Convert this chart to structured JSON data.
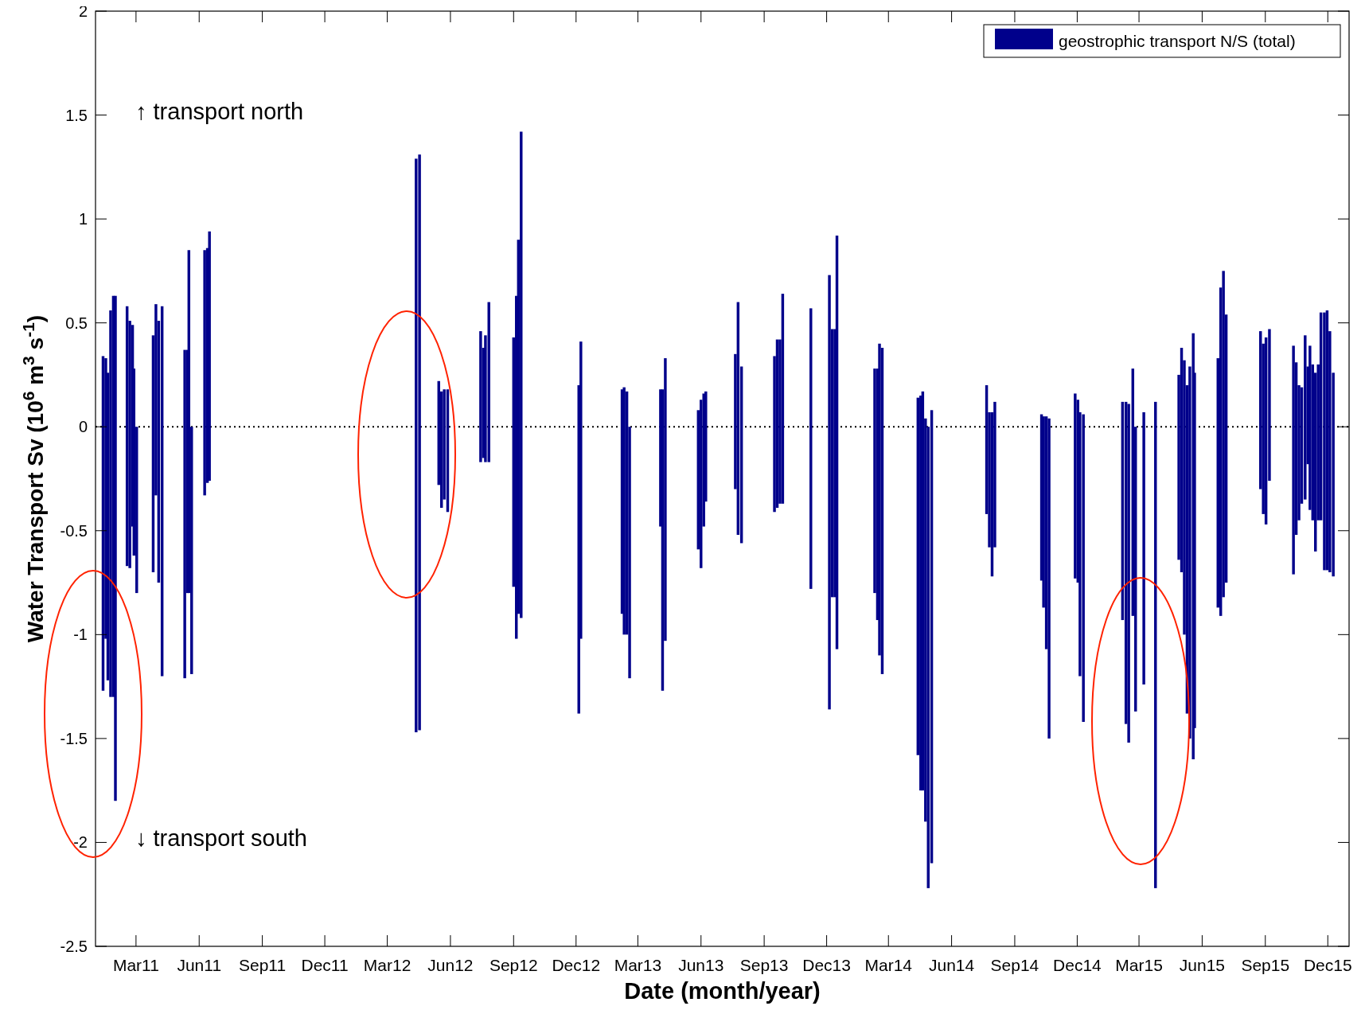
{
  "chart_data": {
    "type": "bar",
    "xlabel": "Date (month/year)",
    "ylabel": "Water Transport Sv (10$^{6}$ m$^{3}$ s$^{-1}$)",
    "annotations": [
      "↑ transport north",
      "↓ transport south"
    ],
    "legend": "top right",
    "grid": false,
    "ylim": [
      -2.5,
      2
    ],
    "yticks": [
      -2.5,
      -2,
      -1.5,
      -1,
      -0.5,
      0,
      0.5,
      1,
      1.5,
      2
    ],
    "xlim": [
      "2011-01-01",
      "2016-01-01"
    ],
    "xticks": [
      {
        "value": "2011-03-01",
        "label": "Mar11"
      },
      {
        "value": "2011-06-01",
        "label": "Jun11"
      },
      {
        "value": "2011-09-01",
        "label": "Sep11"
      },
      {
        "value": "2011-12-01",
        "label": "Dec11"
      },
      {
        "value": "2012-03-01",
        "label": "Mar12"
      },
      {
        "value": "2012-06-01",
        "label": "Jun12"
      },
      {
        "value": "2012-09-01",
        "label": "Sep12"
      },
      {
        "value": "2012-12-01",
        "label": "Dec12"
      },
      {
        "value": "2013-03-01",
        "label": "Mar13"
      },
      {
        "value": "2013-06-01",
        "label": "Jun13"
      },
      {
        "value": "2013-09-01",
        "label": "Sep13"
      },
      {
        "value": "2013-12-01",
        "label": "Dec13"
      },
      {
        "value": "2014-03-01",
        "label": "Mar14"
      },
      {
        "value": "2014-06-01",
        "label": "Jun14"
      },
      {
        "value": "2014-09-01",
        "label": "Sep14"
      },
      {
        "value": "2014-12-01",
        "label": "Dec14"
      },
      {
        "value": "2015-03-01",
        "label": "Mar15"
      },
      {
        "value": "2015-06-01",
        "label": "Jun15"
      },
      {
        "value": "2015-09-01",
        "label": "Sep15"
      },
      {
        "value": "2015-12-01",
        "label": "Dec15"
      }
    ],
    "ref_lines": [
      {
        "axis": "y",
        "value": 0,
        "line_style": "dotted",
        "color": "#000000"
      }
    ],
    "x": [
      "2011-01-12",
      "2011-01-16",
      "2011-01-19",
      "2011-01-23",
      "2011-01-27",
      "2011-01-30",
      "2011-02-16",
      "2011-02-20",
      "2011-02-24",
      "2011-02-26",
      "2011-03-02",
      "2011-03-26",
      "2011-03-30",
      "2011-04-03",
      "2011-04-08",
      "2011-05-11",
      "2011-05-15",
      "2011-05-17",
      "2011-05-21",
      "2011-06-09",
      "2011-06-13",
      "2011-06-16",
      "2012-04-12",
      "2012-04-17",
      "2012-05-15",
      "2012-05-19",
      "2012-05-23",
      "2012-05-28",
      "2012-07-15",
      "2012-07-19",
      "2012-07-22",
      "2012-07-27",
      "2012-09-01",
      "2012-09-05",
      "2012-09-08",
      "2012-09-12",
      "2012-12-05",
      "2012-12-08",
      "2013-02-06",
      "2013-02-09",
      "2013-02-13",
      "2013-02-17",
      "2013-04-03",
      "2013-04-06",
      "2013-04-10",
      "2013-05-28",
      "2013-06-01",
      "2013-06-05",
      "2013-06-08",
      "2013-07-21",
      "2013-07-25",
      "2013-07-30",
      "2013-09-16",
      "2013-09-20",
      "2013-09-24",
      "2013-09-28",
      "2013-11-08",
      "2013-12-05",
      "2013-12-09",
      "2013-12-13",
      "2013-12-16",
      "2014-02-09",
      "2014-02-13",
      "2014-02-16",
      "2014-02-20",
      "2014-04-13",
      "2014-04-17",
      "2014-04-20",
      "2014-04-24",
      "2014-04-28",
      "2014-05-03",
      "2014-07-22",
      "2014-07-26",
      "2014-07-30",
      "2014-08-03",
      "2014-10-10",
      "2014-10-13",
      "2014-10-17",
      "2014-10-21",
      "2014-11-28",
      "2014-12-02",
      "2014-12-05",
      "2014-12-10",
      "2015-02-05",
      "2015-02-10",
      "2015-02-14",
      "2015-02-20",
      "2015-02-24",
      "2015-03-08",
      "2015-03-25",
      "2015-04-28",
      "2015-05-02",
      "2015-05-06",
      "2015-05-10",
      "2015-05-14",
      "2015-05-19",
      "2015-05-21",
      "2015-06-24",
      "2015-06-28",
      "2015-07-02",
      "2015-07-06",
      "2015-08-25",
      "2015-08-29",
      "2015-09-02",
      "2015-09-07",
      "2015-10-12",
      "2015-10-16",
      "2015-10-20",
      "2015-10-24",
      "2015-10-29",
      "2015-11-02",
      "2015-11-05",
      "2015-11-09",
      "2015-11-13",
      "2015-11-17",
      "2015-11-21",
      "2015-11-26",
      "2015-11-30",
      "2015-12-04",
      "2015-12-09"
    ],
    "series": [
      {
        "name": "geostrophic transport N/S (total)",
        "color": "#00008b",
        "base": [
          -1.27,
          -1.02,
          -1.22,
          -1.3,
          -1.3,
          -1.8,
          -0.67,
          -0.68,
          -0.48,
          -0.62,
          -0.8,
          -0.7,
          -0.33,
          -0.75,
          -1.2,
          -1.21,
          -0.8,
          -0.8,
          -1.19,
          -0.33,
          -0.27,
          -0.26,
          -1.47,
          -1.46,
          -0.28,
          -0.39,
          -0.35,
          -0.41,
          -0.17,
          -0.15,
          -0.17,
          -0.17,
          -0.77,
          -1.02,
          -0.9,
          -0.92,
          -1.38,
          -1.02,
          -0.9,
          -1.0,
          -1.0,
          -1.21,
          -0.48,
          -1.27,
          -1.03,
          -0.59,
          -0.68,
          -0.48,
          -0.36,
          -0.3,
          -0.52,
          -0.56,
          -0.41,
          -0.39,
          -0.37,
          -0.37,
          -0.78,
          -1.36,
          -0.82,
          -0.82,
          -1.07,
          -0.8,
          -0.93,
          -1.1,
          -1.19,
          -1.58,
          -1.75,
          -1.75,
          -1.9,
          -2.22,
          -2.1,
          -0.42,
          -0.58,
          -0.72,
          -0.58,
          -0.74,
          -0.87,
          -1.07,
          -1.5,
          -0.73,
          -0.75,
          -1.2,
          -1.42,
          -0.93,
          -1.43,
          -1.52,
          -0.91,
          -1.37,
          -1.24,
          -2.22,
          -0.64,
          -0.7,
          -1.0,
          -1.38,
          -1.5,
          -1.6,
          -1.45,
          -0.87,
          -0.91,
          -0.82,
          -0.75,
          -0.3,
          -0.42,
          -0.47,
          -0.26,
          -0.71,
          -0.52,
          -0.45,
          -0.37,
          -0.35,
          -0.18,
          -0.4,
          -0.45,
          -0.6,
          -0.45,
          -0.45,
          -0.69,
          -0.69,
          -0.7,
          -0.72
        ],
        "values": [
          1.61,
          1.35,
          1.48,
          1.86,
          1.93,
          2.43,
          1.25,
          1.19,
          0.97,
          0.9,
          0.8,
          1.14,
          0.92,
          1.26,
          1.78,
          1.58,
          1.17,
          1.65,
          1.19,
          1.18,
          1.13,
          1.2,
          2.76,
          2.77,
          0.5,
          0.56,
          0.53,
          0.59,
          0.63,
          0.53,
          0.61,
          0.77,
          1.2,
          1.65,
          1.8,
          2.34,
          1.58,
          1.43,
          1.08,
          1.19,
          1.17,
          1.21,
          0.66,
          1.45,
          1.36,
          0.67,
          0.81,
          0.64,
          0.53,
          0.65,
          1.12,
          0.85,
          0.75,
          0.81,
          0.79,
          1.01,
          1.35,
          2.09,
          1.29,
          1.29,
          1.99,
          1.08,
          1.21,
          1.5,
          1.57,
          1.72,
          1.9,
          1.92,
          1.94,
          2.22,
          2.18,
          0.62,
          0.65,
          0.79,
          0.7,
          0.8,
          0.92,
          1.12,
          1.54,
          0.89,
          0.88,
          1.27,
          1.48,
          1.05,
          1.55,
          1.63,
          1.19,
          1.37,
          1.31,
          2.34,
          0.89,
          1.08,
          1.32,
          1.58,
          1.79,
          2.05,
          1.71,
          1.2,
          1.58,
          1.57,
          1.29,
          0.76,
          0.82,
          0.9,
          0.73,
          1.1,
          0.83,
          0.65,
          0.56,
          0.79,
          0.47,
          0.79,
          0.75,
          0.86,
          0.75,
          1.0,
          1.24,
          1.25,
          1.16,
          0.98
        ]
      }
    ]
  }
}
